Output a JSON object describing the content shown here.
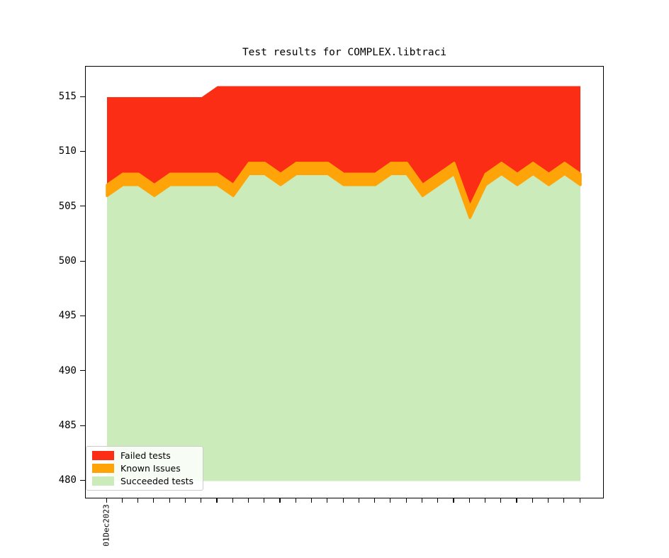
{
  "chart_data": {
    "type": "area",
    "stacked": true,
    "title": "Test results for COMPLEX.libtraci",
    "x_tick_label_first": "01Dec2023",
    "n_points": 31,
    "x_description": "daily test results starting 01Dec2023; 31 unlabeled day ticks, only first tick labeled",
    "yticks": [
      515,
      510,
      505,
      500,
      495,
      490,
      485,
      480
    ],
    "ylim": [
      478.3,
      517.6
    ],
    "baseline": 480,
    "grid": false,
    "legend_position": "lower left",
    "series": [
      {
        "name": "Failed tests",
        "color": "#fb2d14",
        "values": [
          8,
          7,
          7,
          8,
          7,
          7,
          7,
          8,
          9,
          7,
          7,
          8,
          7,
          7,
          7,
          8,
          8,
          8,
          7,
          7,
          9,
          8,
          7,
          11,
          8,
          7,
          8,
          7,
          8,
          7,
          8
        ]
      },
      {
        "name": "Known Issues",
        "color": "#ffa408",
        "values": [
          1,
          1,
          1,
          1,
          1,
          1,
          1,
          1,
          1,
          1,
          1,
          1,
          1,
          1,
          1,
          1,
          1,
          1,
          1,
          1,
          1,
          1,
          1,
          1,
          1,
          1,
          1,
          1,
          1,
          1,
          1
        ]
      },
      {
        "name": "Succeeded tests",
        "color": "#cbecba",
        "values": [
          506,
          507,
          507,
          506,
          507,
          507,
          507,
          507,
          506,
          508,
          508,
          507,
          508,
          508,
          508,
          507,
          507,
          507,
          508,
          508,
          506,
          507,
          508,
          504,
          507,
          508,
          507,
          508,
          507,
          508,
          507
        ]
      }
    ],
    "totals": [
      515,
      515,
      515,
      515,
      515,
      515,
      515,
      516,
      516,
      516,
      516,
      516,
      516,
      516,
      516,
      516,
      516,
      516,
      516,
      516,
      516,
      516,
      516,
      516,
      516,
      516,
      516,
      516,
      516,
      516,
      516
    ]
  }
}
